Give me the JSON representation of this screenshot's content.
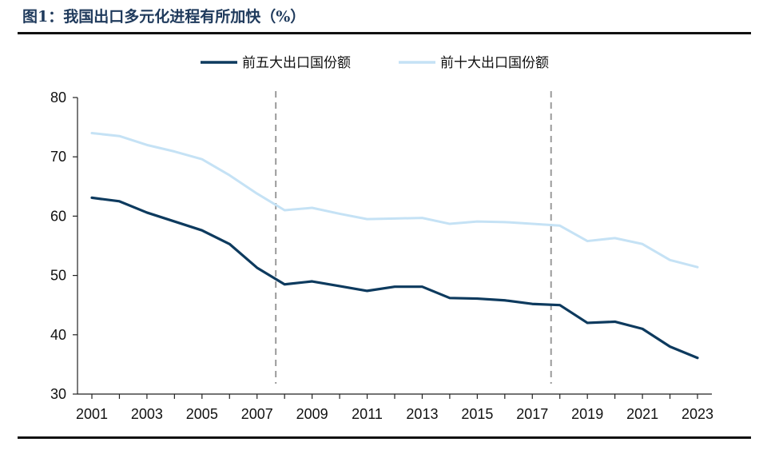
{
  "figure": {
    "title": "图1：我国出口多元化进程有所加快（%）"
  },
  "chart_data": {
    "type": "line",
    "title": "图1：我国出口多元化进程有所加快（%）",
    "xlabel": "",
    "ylabel": "",
    "x": [
      2001,
      2002,
      2003,
      2004,
      2005,
      2006,
      2007,
      2008,
      2009,
      2010,
      2011,
      2012,
      2013,
      2014,
      2015,
      2016,
      2017,
      2018,
      2019,
      2020,
      2021,
      2022,
      2023
    ],
    "x_tick_labels": [
      "2001",
      "2003",
      "2005",
      "2007",
      "2009",
      "2011",
      "2013",
      "2015",
      "2017",
      "2019",
      "2021",
      "2023"
    ],
    "y_tick_labels": [
      "30",
      "40",
      "50",
      "60",
      "70",
      "80"
    ],
    "xlim": [
      2001,
      2023
    ],
    "ylim": [
      30,
      80
    ],
    "grid": false,
    "legend_position": "top",
    "reference_lines_x": [
      2008,
      2018
    ],
    "series": [
      {
        "name": "前五大出口国份额",
        "color": "#0d3a5e",
        "values": [
          63.1,
          62.5,
          60.6,
          59.1,
          57.6,
          55.3,
          51.3,
          48.5,
          49.0,
          48.2,
          47.4,
          48.1,
          48.1,
          46.2,
          46.1,
          45.8,
          45.2,
          45.0,
          42.0,
          42.2,
          41.0,
          38.0,
          36.1
        ]
      },
      {
        "name": "前十大出口国份额",
        "color": "#c5e2f5",
        "values": [
          74.0,
          73.5,
          72.0,
          70.9,
          69.6,
          66.9,
          63.8,
          61.0,
          61.4,
          60.4,
          59.5,
          59.6,
          59.7,
          58.7,
          59.1,
          59.0,
          58.7,
          58.4,
          55.8,
          56.3,
          55.3,
          52.6,
          51.4
        ]
      }
    ]
  }
}
